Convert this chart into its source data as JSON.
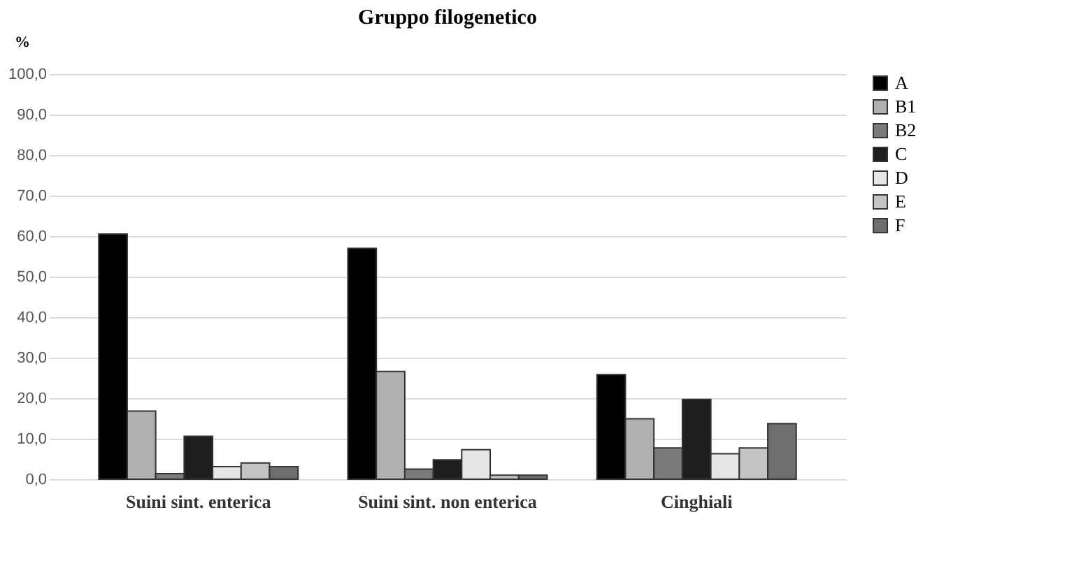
{
  "chart_data": {
    "type": "bar",
    "title": "Gruppo filogenetico",
    "ylabel": "%",
    "categories": [
      "Suini sint. enterica",
      "Suini sint. non enterica",
      "Cinghiali"
    ],
    "series": [
      {
        "name": "A",
        "color": "#000000",
        "values": [
          60.5,
          57.0,
          25.8
        ]
      },
      {
        "name": "B1",
        "color": "#b0b0b0",
        "values": [
          16.8,
          26.6,
          14.9
        ]
      },
      {
        "name": "B2",
        "color": "#7a7a7a",
        "values": [
          1.4,
          2.5,
          7.7
        ]
      },
      {
        "name": "C",
        "color": "#1e1e1e",
        "values": [
          10.6,
          4.8,
          19.7
        ]
      },
      {
        "name": "D",
        "color": "#e6e6e6",
        "values": [
          3.1,
          7.3,
          6.3
        ]
      },
      {
        "name": "E",
        "color": "#c4c4c4",
        "values": [
          4.0,
          1.0,
          7.7
        ]
      },
      {
        "name": "F",
        "color": "#6e6e6e",
        "values": [
          3.1,
          1.0,
          13.7
        ]
      }
    ],
    "ylim": [
      0,
      100
    ],
    "yticks": [
      {
        "value": 0,
        "label": "0,0"
      },
      {
        "value": 10,
        "label": "10,0"
      },
      {
        "value": 20,
        "label": "20,0"
      },
      {
        "value": 30,
        "label": "30,0"
      },
      {
        "value": 40,
        "label": "40,0"
      },
      {
        "value": 50,
        "label": "50,0"
      },
      {
        "value": 60,
        "label": "60,0"
      },
      {
        "value": 70,
        "label": "70,0"
      },
      {
        "value": 80,
        "label": "80,0"
      },
      {
        "value": 90,
        "label": "90,0"
      },
      {
        "value": 100,
        "label": "100,0"
      }
    ],
    "grid": "y",
    "legend": "right"
  }
}
